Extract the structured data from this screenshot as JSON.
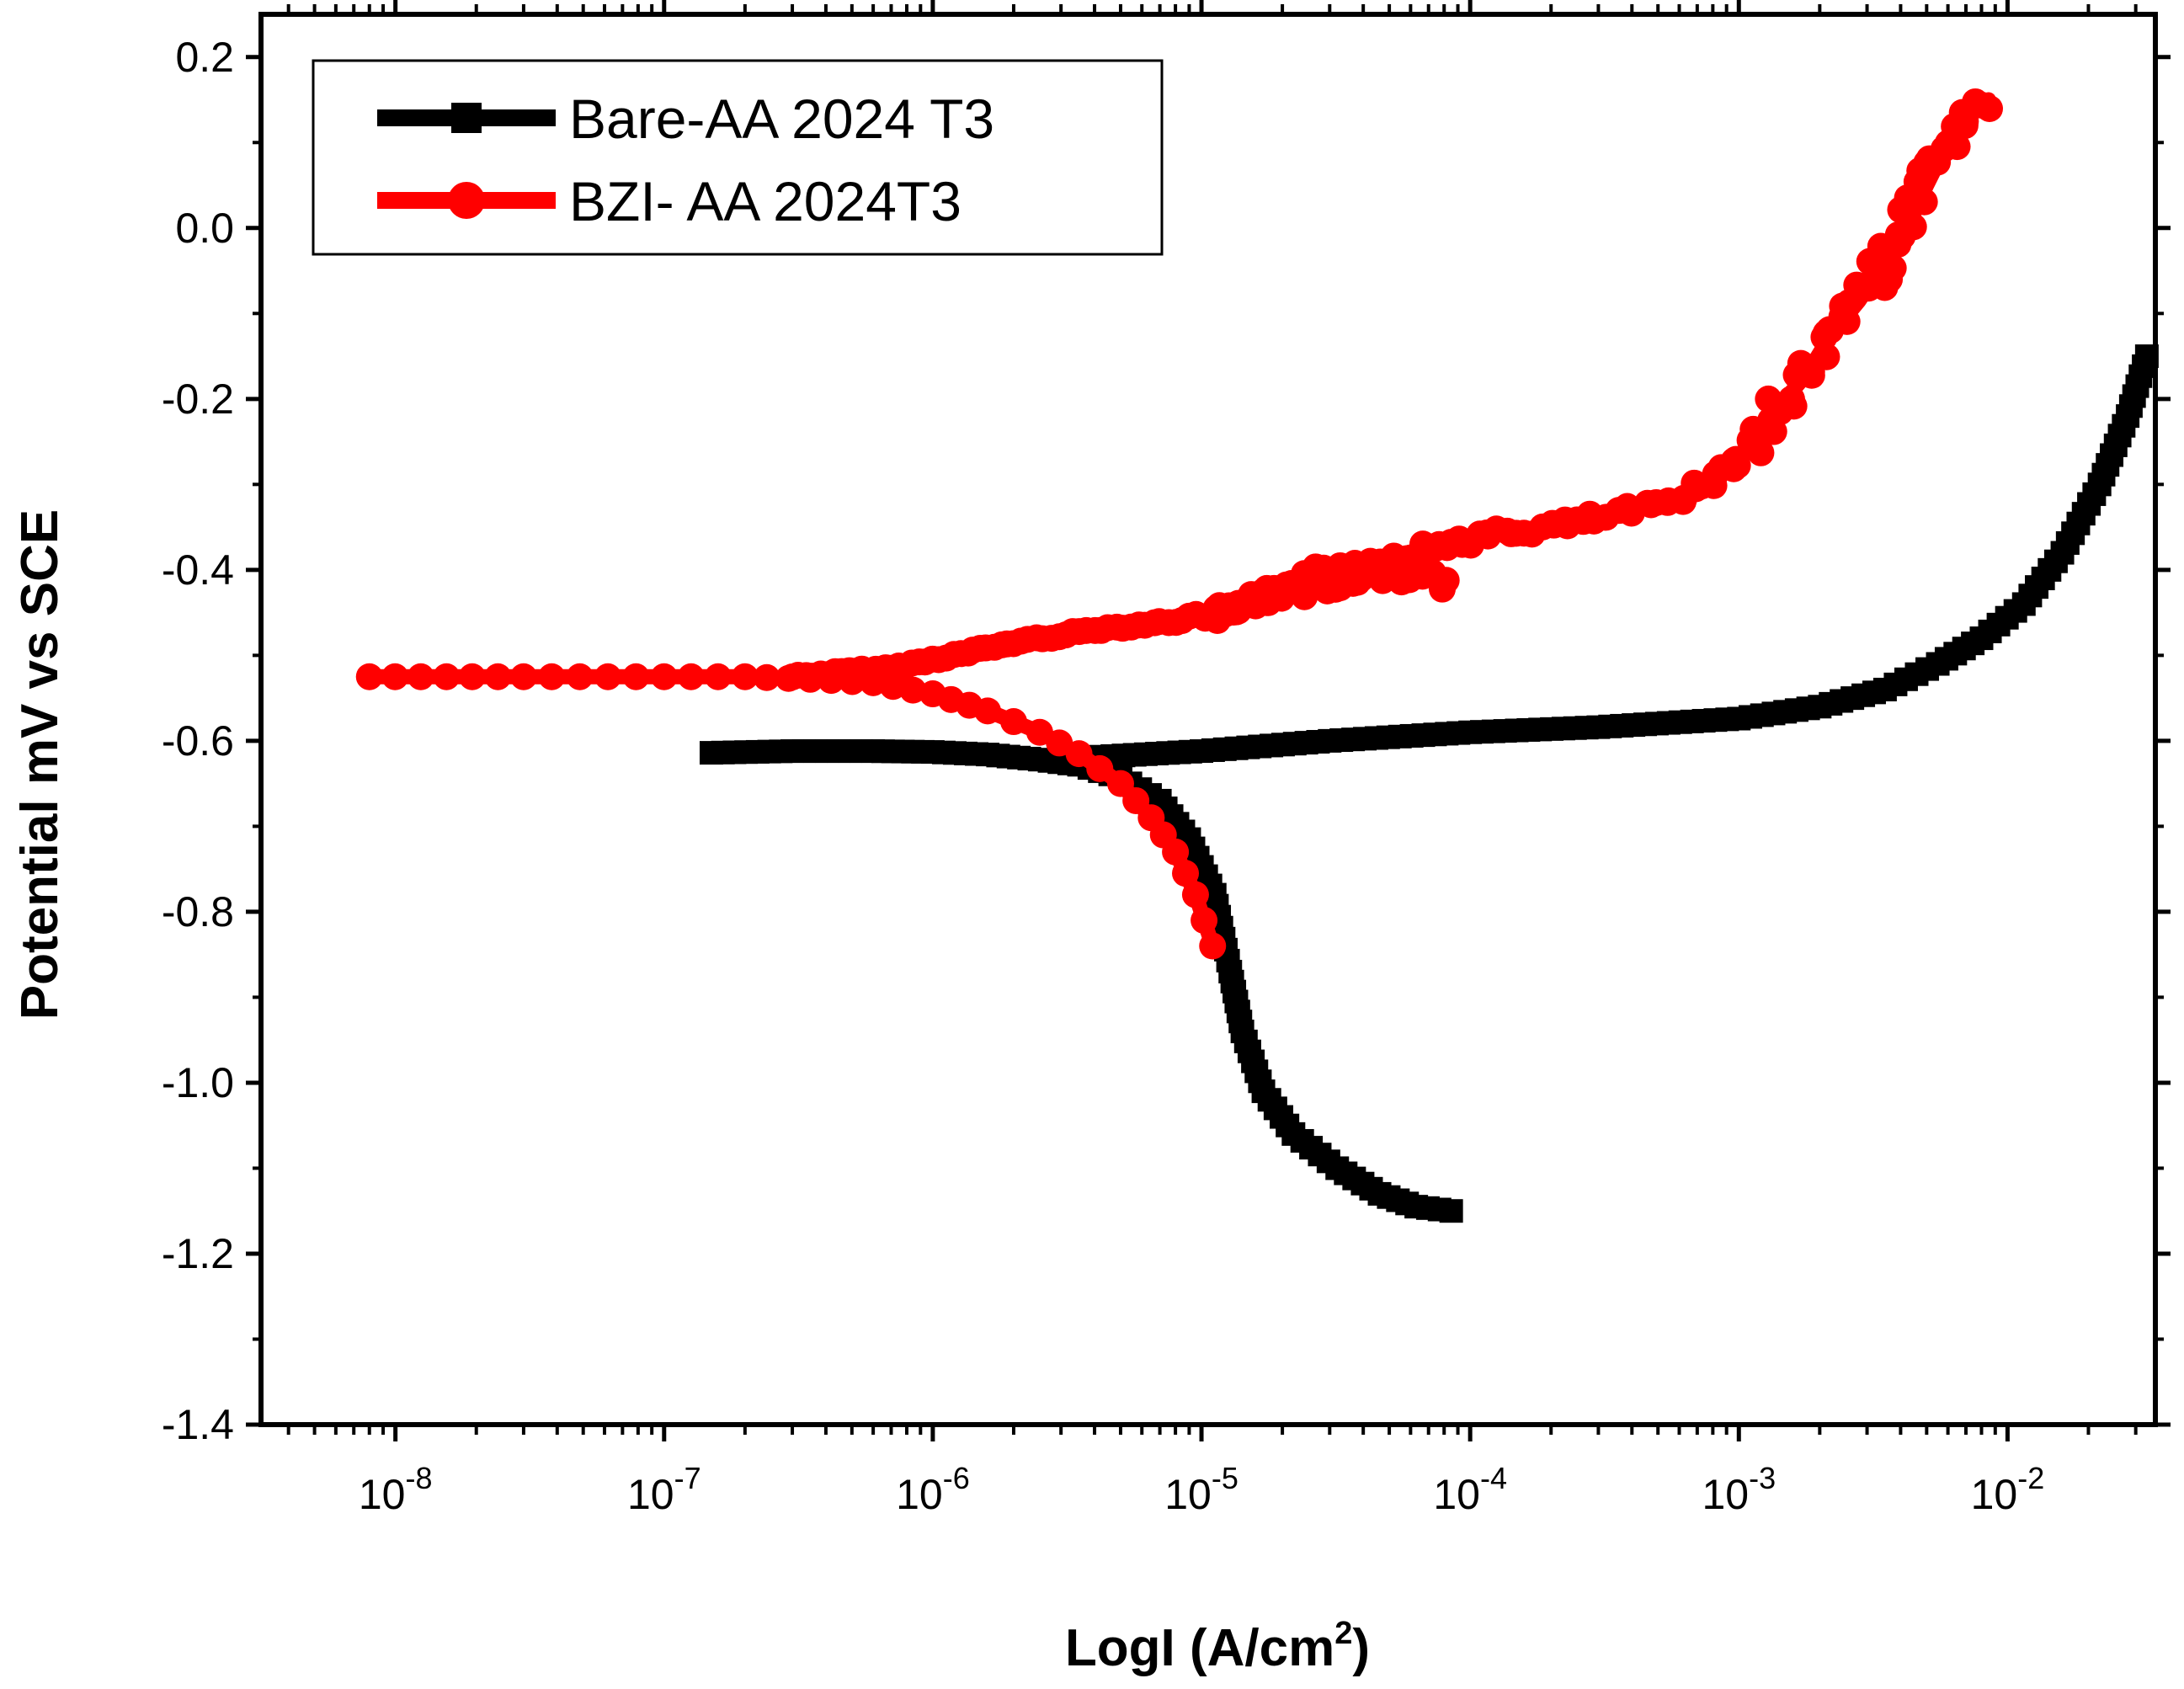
{
  "chart_data": {
    "type": "line",
    "title": "",
    "xlabel": {
      "text": "LogI (A/cm",
      "superscript": "2",
      "suffix": ")"
    },
    "ylabel": "Potential mV vs SCE",
    "x_scale": "log",
    "xlim": [
      3.16e-09,
      0.0355
    ],
    "ylim": [
      -1.4,
      0.25
    ],
    "y_ticks": [
      "-1.4",
      "-1.2",
      "-1.0",
      "-0.8",
      "-0.6",
      "-0.4",
      "-0.2",
      "0.0",
      "0.2"
    ],
    "x_tick_base": "10",
    "x_tick_exponents": [
      "-8",
      "-7",
      "-6",
      "-5",
      "-4",
      "-3",
      "-2"
    ],
    "legend_position": "top-left",
    "series": [
      {
        "name": "Bare-AA 2024 T3",
        "color": "#000000",
        "marker": "square",
        "points": [
          [
            1.5e-07,
            -0.614
          ],
          [
            3e-07,
            -0.612
          ],
          [
            6e-07,
            -0.612
          ],
          [
            1e-06,
            -0.613
          ],
          [
            1.6e-06,
            -0.616
          ],
          [
            2.5e-06,
            -0.622
          ],
          [
            3.5e-06,
            -0.628
          ],
          [
            5e-06,
            -0.643
          ],
          [
            7e-06,
            -0.67
          ],
          [
            9e-06,
            -0.715
          ],
          [
            1.12e-05,
            -0.78
          ],
          [
            1.28e-05,
            -0.87
          ],
          [
            1.42e-05,
            -0.94
          ],
          [
            1.7e-05,
            -1.01
          ],
          [
            2.2e-05,
            -1.06
          ],
          [
            3.2e-05,
            -1.1
          ],
          [
            4.6e-05,
            -1.13
          ],
          [
            6.3e-05,
            -1.145
          ],
          [
            8.5e-05,
            -1.15
          ]
        ],
        "anodic_points": [
          [
            3.5e-06,
            -0.62
          ],
          [
            1e-05,
            -0.612
          ],
          [
            3e-05,
            -0.6
          ],
          [
            0.0001,
            -0.59
          ],
          [
            0.0003,
            -0.584
          ],
          [
            0.001,
            -0.574
          ],
          [
            0.002,
            -0.56
          ],
          [
            0.0035,
            -0.54
          ],
          [
            0.0055,
            -0.51
          ],
          [
            0.008,
            -0.48
          ],
          [
            0.0115,
            -0.44
          ],
          [
            0.016,
            -0.38
          ],
          [
            0.022,
            -0.3
          ],
          [
            0.028,
            -0.22
          ],
          [
            0.033,
            -0.15
          ]
        ]
      },
      {
        "name": "BZI- AA 2024T3",
        "color": "#ff0000",
        "marker": "circle",
        "points": [
          [
            8e-09,
            -0.525
          ],
          [
            3e-08,
            -0.525
          ],
          [
            1e-07,
            -0.525
          ],
          [
            2e-07,
            -0.525
          ],
          [
            3.5e-07,
            -0.528
          ],
          [
            6e-07,
            -0.532
          ],
          [
            1e-06,
            -0.545
          ],
          [
            1.6e-06,
            -0.565
          ],
          [
            2.5e-06,
            -0.59
          ],
          [
            3.5e-06,
            -0.615
          ],
          [
            5e-06,
            -0.65
          ],
          [
            6.5e-06,
            -0.69
          ],
          [
            8e-06,
            -0.73
          ],
          [
            9.5e-06,
            -0.78
          ],
          [
            1.1e-05,
            -0.84
          ]
        ],
        "anodic_points": [
          [
            3e-07,
            -0.525
          ],
          [
            7e-07,
            -0.515
          ],
          [
            1.2e-06,
            -0.5
          ],
          [
            2e-06,
            -0.485
          ],
          [
            4e-06,
            -0.47
          ],
          [
            8e-06,
            -0.46
          ],
          [
            1.5e-05,
            -0.44
          ],
          [
            2.2e-05,
            -0.41
          ],
          [
            3.5e-05,
            -0.395
          ],
          [
            5e-05,
            -0.385
          ],
          [
            8e-05,
            -0.37
          ],
          [
            0.00012,
            -0.36
          ],
          [
            0.00025,
            -0.345
          ],
          [
            0.0005,
            -0.325
          ],
          [
            0.0008,
            -0.295
          ],
          [
            0.0011,
            -0.26
          ],
          [
            0.0014,
            -0.21
          ],
          [
            0.0018,
            -0.17
          ],
          [
            0.0022,
            -0.125
          ],
          [
            0.0028,
            -0.085
          ],
          [
            0.0035,
            -0.04
          ],
          [
            0.0042,
            0.0
          ],
          [
            0.005,
            0.05
          ],
          [
            0.006,
            0.1
          ],
          [
            0.007,
            0.13
          ],
          [
            0.0085,
            0.15
          ]
        ],
        "loop_points": [
          [
            1.2e-05,
            -0.46
          ],
          [
            2e-05,
            -0.43
          ],
          [
            3e-05,
            -0.42
          ],
          [
            5e-05,
            -0.405
          ],
          [
            7e-05,
            -0.41
          ],
          [
            8e-05,
            -0.42
          ]
        ]
      }
    ]
  }
}
